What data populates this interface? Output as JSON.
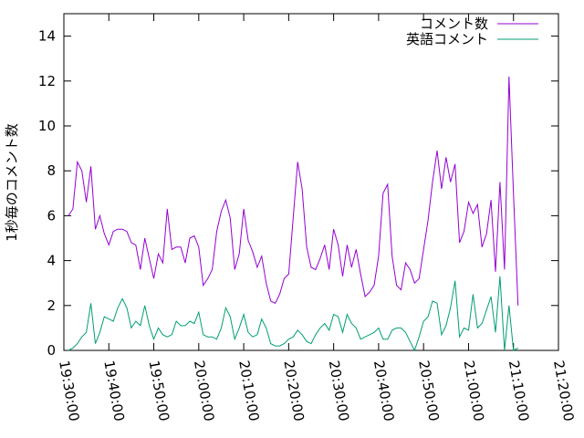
{
  "chart_data": {
    "type": "line",
    "ylabel": "1秒毎のコメント数",
    "x": [
      "19:31:00",
      "19:32:00",
      "19:33:00",
      "19:34:00",
      "19:35:00",
      "19:36:00",
      "19:37:00",
      "19:38:00",
      "19:39:00",
      "19:40:00",
      "19:41:00",
      "19:42:00",
      "19:43:00",
      "19:44:00",
      "19:45:00",
      "19:46:00",
      "19:47:00",
      "19:48:00",
      "19:49:00",
      "19:50:00",
      "19:51:00",
      "19:52:00",
      "19:53:00",
      "19:54:00",
      "19:55:00",
      "19:56:00",
      "19:57:00",
      "19:58:00",
      "19:59:00",
      "20:00:00",
      "20:01:00",
      "20:02:00",
      "20:03:00",
      "20:04:00",
      "20:05:00",
      "20:06:00",
      "20:07:00",
      "20:08:00",
      "20:09:00",
      "20:10:00",
      "20:11:00",
      "20:12:00",
      "20:13:00",
      "20:14:00",
      "20:15:00",
      "20:16:00",
      "20:17:00",
      "20:18:00",
      "20:19:00",
      "20:20:00",
      "20:21:00",
      "20:22:00",
      "20:23:00",
      "20:24:00",
      "20:25:00",
      "20:26:00",
      "20:27:00",
      "20:28:00",
      "20:29:00",
      "20:30:00",
      "20:31:00",
      "20:32:00",
      "20:33:00",
      "20:34:00",
      "20:35:00",
      "20:36:00",
      "20:37:00",
      "20:38:00",
      "20:39:00",
      "20:40:00",
      "20:41:00",
      "20:42:00",
      "20:43:00",
      "20:44:00",
      "20:45:00",
      "20:46:00",
      "20:47:00",
      "20:48:00",
      "20:49:00",
      "20:50:00",
      "20:51:00",
      "20:52:00",
      "20:53:00",
      "20:54:00",
      "20:55:00",
      "20:56:00",
      "20:57:00",
      "20:58:00",
      "20:59:00",
      "21:00:00",
      "21:01:00",
      "21:02:00",
      "21:03:00",
      "21:04:00",
      "21:05:00",
      "21:06:00",
      "21:07:00",
      "21:08:00",
      "21:09:00",
      "21:10:00",
      "21:11:00"
    ],
    "series": [
      {
        "name": "コメント数",
        "color": "#9400d3",
        "values": [
          6.0,
          6.3,
          8.4,
          8.0,
          6.6,
          8.2,
          5.4,
          6.0,
          5.2,
          4.7,
          5.3,
          5.4,
          5.4,
          5.3,
          4.8,
          4.7,
          3.6,
          5.0,
          4.1,
          3.2,
          4.3,
          3.9,
          6.3,
          4.5,
          4.6,
          4.6,
          3.9,
          5.0,
          5.1,
          4.6,
          2.9,
          3.2,
          3.6,
          5.3,
          6.2,
          6.7,
          5.9,
          3.6,
          4.3,
          6.3,
          4.9,
          4.4,
          3.7,
          4.2,
          3.0,
          2.2,
          2.1,
          2.5,
          3.2,
          3.4,
          5.9,
          8.4,
          7.2,
          4.6,
          3.7,
          3.6,
          4.1,
          4.7,
          3.6,
          5.4,
          4.7,
          3.3,
          4.7,
          3.7,
          4.5,
          3.4,
          2.4,
          2.6,
          2.9,
          4.2,
          7.0,
          7.4,
          4.2,
          2.9,
          2.7,
          3.9,
          3.6,
          3.0,
          3.2,
          4.5,
          5.8,
          7.5,
          8.9,
          7.2,
          8.6,
          7.5,
          8.3,
          4.8,
          5.3,
          6.6,
          6.1,
          6.5,
          4.6,
          5.2,
          6.7,
          3.5,
          7.5,
          3.6,
          12.2,
          7.0,
          2.0
        ]
      },
      {
        "name": "英語コメント",
        "color": "#009e73",
        "values": [
          0,
          0.1,
          0.3,
          0.6,
          0.8,
          2.1,
          0.3,
          0.8,
          1.5,
          1.4,
          1.3,
          1.9,
          2.3,
          1.9,
          1.0,
          1.3,
          1.1,
          2.0,
          1.1,
          0.5,
          1.0,
          0.7,
          0.6,
          0.7,
          1.3,
          1.1,
          1.1,
          1.3,
          1.2,
          1.7,
          0.7,
          0.6,
          0.6,
          0.5,
          1.0,
          1.9,
          1.5,
          0.5,
          1.0,
          1.6,
          0.8,
          0.6,
          0.7,
          1.4,
          1.0,
          0.3,
          0.2,
          0.2,
          0.3,
          0.5,
          0.6,
          0.9,
          0.7,
          0.4,
          0.3,
          0.7,
          1.0,
          1.2,
          0.9,
          1.6,
          1.5,
          0.8,
          1.6,
          1.2,
          1.0,
          0.5,
          0.6,
          0.7,
          0.8,
          1.0,
          0.5,
          0.5,
          0.9,
          1.0,
          1.0,
          0.8,
          0.4,
          0.0,
          0.6,
          1.3,
          1.5,
          2.2,
          2.1,
          0.7,
          1.1,
          1.9,
          3.1,
          0.6,
          1.0,
          0.9,
          2.5,
          1.0,
          1.2,
          1.8,
          2.4,
          0.8,
          3.3,
          0.0,
          2.0,
          0.0,
          0.1
        ]
      }
    ],
    "xlim": [
      "19:30:00",
      "21:20:00"
    ],
    "xticks": [
      "19:30:00",
      "19:40:00",
      "19:50:00",
      "20:00:00",
      "20:10:00",
      "20:20:00",
      "20:30:00",
      "20:40:00",
      "20:50:00",
      "21:00:00",
      "21:10:00",
      "21:20:00"
    ],
    "ylim": [
      0,
      15
    ],
    "yticks": [
      0,
      2,
      4,
      6,
      8,
      10,
      12,
      14
    ],
    "legend": "top-right"
  }
}
